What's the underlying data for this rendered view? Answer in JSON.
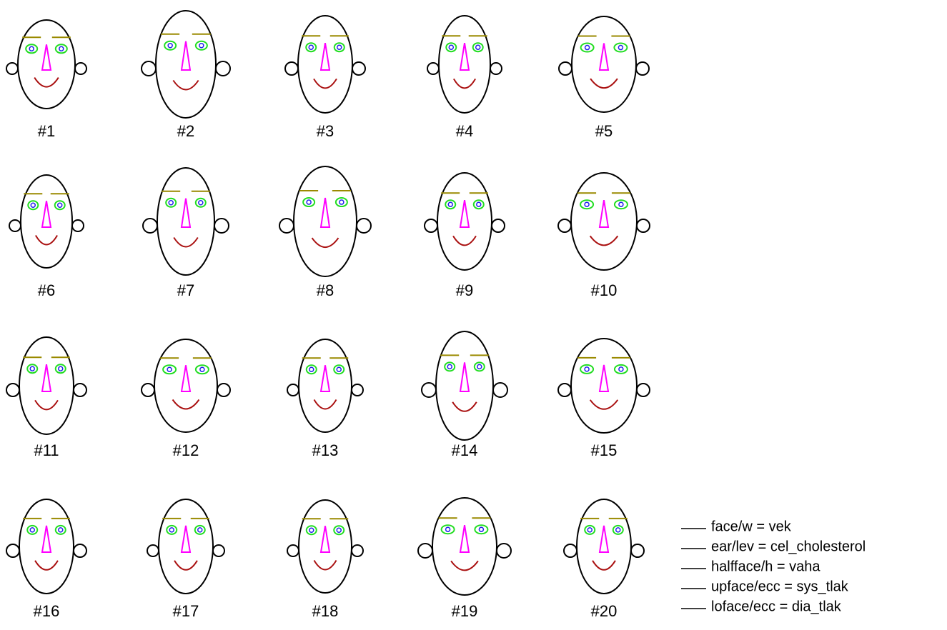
{
  "faces": [
    "#1",
    "#2",
    "#3",
    "#4",
    "#5",
    "#6",
    "#7",
    "#8",
    "#9",
    "#10",
    "#11",
    "#12",
    "#13",
    "#14",
    "#15",
    "#16",
    "#17",
    "#18",
    "#19",
    "#20"
  ],
  "legend": [
    "face/w = vek",
    "ear/lev = cel_cholesterol",
    "halfface/h = vaha",
    "upface/ecc = sys_tlak",
    "loface/ecc = dia_tlak"
  ]
}
